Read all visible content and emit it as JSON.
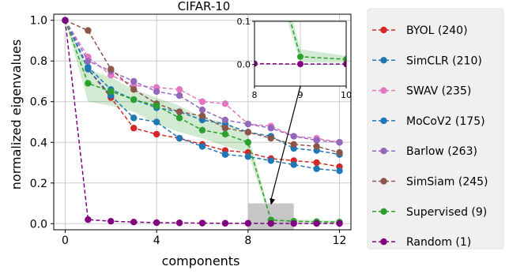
{
  "chart_data": {
    "type": "line",
    "title": "CIFAR-10",
    "xlabel": "components",
    "ylabel": "normalized eigenvalues",
    "xlim": [
      -0.5,
      12.5
    ],
    "ylim": [
      -0.03,
      1.03
    ],
    "xticks": [
      0,
      4,
      8,
      12
    ],
    "yticks": [
      0.0,
      0.2,
      0.4,
      0.6,
      0.8,
      1.0
    ],
    "grid": true,
    "legend_position": "right",
    "x": [
      0,
      1,
      2,
      3,
      4,
      5,
      6,
      7,
      8,
      9,
      10,
      11,
      12
    ],
    "series": [
      {
        "name": "BYOL (240)",
        "color": "#d62728",
        "values": [
          1.0,
          0.76,
          0.62,
          0.47,
          0.44,
          0.42,
          0.39,
          0.36,
          0.35,
          0.32,
          0.31,
          0.3,
          0.28
        ]
      },
      {
        "name": "SimCLR (210)",
        "color": "#1f77b4",
        "values": [
          1.0,
          0.76,
          0.63,
          0.52,
          0.5,
          0.42,
          0.38,
          0.34,
          0.33,
          0.31,
          0.29,
          0.27,
          0.26
        ]
      },
      {
        "name": "SWAV (235)",
        "color": "#e377c2",
        "values": [
          1.0,
          0.82,
          0.73,
          0.68,
          0.67,
          0.66,
          0.6,
          0.59,
          0.49,
          0.48,
          0.43,
          0.42,
          0.4
        ]
      },
      {
        "name": "MoCoV2 (175)",
        "color": "#1f77b4",
        "values": [
          1.0,
          0.77,
          0.66,
          0.61,
          0.57,
          0.55,
          0.51,
          0.49,
          0.45,
          0.43,
          0.37,
          0.36,
          0.34
        ]
      },
      {
        "name": "Barlow (263)",
        "color": "#9467bd",
        "values": [
          1.0,
          0.8,
          0.75,
          0.7,
          0.65,
          0.63,
          0.56,
          0.51,
          0.49,
          0.47,
          0.43,
          0.41,
          0.4
        ]
      },
      {
        "name": "SimSiam (245)",
        "color": "#8c564b",
        "values": [
          1.0,
          0.95,
          0.76,
          0.66,
          0.59,
          0.55,
          0.53,
          0.47,
          0.45,
          0.42,
          0.39,
          0.38,
          0.35
        ]
      },
      {
        "name": "Supervised (9)",
        "color": "#2ca02c",
        "values": [
          1.0,
          0.69,
          0.65,
          0.61,
          0.58,
          0.52,
          0.46,
          0.44,
          0.4,
          0.018,
          0.012,
          0.01,
          0.008
        ]
      },
      {
        "name": "Random (1)",
        "color": "#800080",
        "values": [
          1.0,
          0.02,
          0.012,
          0.008,
          0.005,
          0.004,
          0.003,
          0.002,
          0.002,
          0.001,
          0.001,
          0.001,
          0.001
        ]
      }
    ],
    "band": {
      "x": [
        0,
        1,
        2,
        3,
        4,
        5,
        6,
        7,
        8,
        9,
        10,
        11,
        12
      ],
      "lower": [
        1.0,
        0.6,
        0.58,
        0.55,
        0.49,
        0.45,
        0.42,
        0.38,
        0.35,
        0.005,
        0.004,
        0.003,
        0.002
      ],
      "upper": [
        1.0,
        0.76,
        0.72,
        0.66,
        0.62,
        0.58,
        0.52,
        0.5,
        0.44,
        0.035,
        0.02,
        0.018,
        0.015
      ],
      "color": "#2ca02c"
    },
    "highlight_region": {
      "x": [
        8,
        10
      ],
      "y": [
        -0.03,
        0.1
      ]
    },
    "inset": {
      "xlim": [
        8,
        10
      ],
      "ylim": [
        -0.05,
        0.1
      ],
      "xticks": [
        8,
        9,
        10
      ],
      "yticks": [
        0.0,
        0.1
      ],
      "ytick_labels": [
        "0.0",
        "0.1"
      ],
      "series_indices": [
        6,
        7
      ]
    }
  }
}
